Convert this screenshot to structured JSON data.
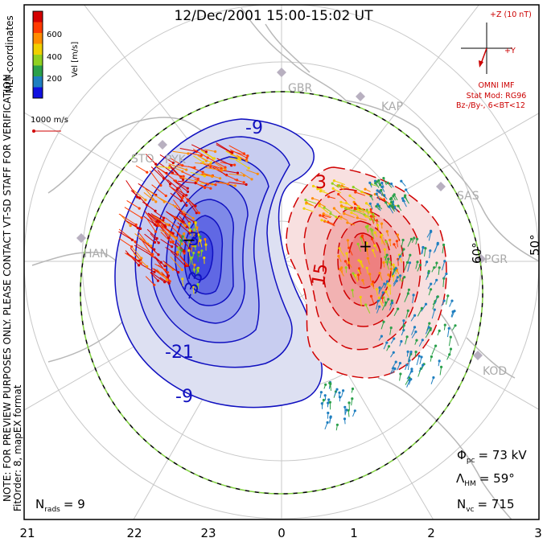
{
  "title": "12/Dec/2001  15:00-15:02  UT",
  "mlt_ticks": [
    "21",
    "22",
    "23",
    "0",
    "1",
    "2",
    "3"
  ],
  "lat_labels": [
    "60°",
    "50°"
  ],
  "radars": [
    "GBR",
    "KAP",
    "SAS",
    "PGR",
    "KOD",
    "STO",
    "PYK",
    "HAN"
  ],
  "colorbar": {
    "label": "Vel [m/s]",
    "ticks": [
      "600",
      "400",
      "200"
    ],
    "colors": [
      "#d40000",
      "#ff3a00",
      "#ff8c00",
      "#f0d000",
      "#90d020",
      "#2aa04a",
      "#1e7fc0",
      "#1010e0"
    ]
  },
  "coords_label": "MLT coordinates",
  "vector_scale": "1000 m/s",
  "imf": {
    "z_label": "+Z (10 nT)",
    "y_label": "+Y",
    "source": "OMNI IMF",
    "model": "Stat Mod: RG96",
    "condition": "Bz-/By-, 6<BT<12"
  },
  "contour_labels": [
    "-9",
    "-3",
    "-33",
    "-21",
    "-9",
    "3",
    "15"
  ],
  "stats": {
    "phi_pc": "Φ",
    "phi_sub": "pc",
    "phi_value": "= 73 kV",
    "lambda": "Λ",
    "lambda_sub": "HM",
    "lambda_value": "= 59°",
    "nvc": "N",
    "nvc_sub": "vc",
    "nvc_value": "= 715",
    "nrads": "N",
    "nrads_sub": "rads",
    "nrads_value": "= 9"
  },
  "note": "NOTE: FOR PREVIEW PURPOSES ONLY. PLEASE CONTACT VT-SD STAFF FOR VERIFICATION.",
  "fit_order": "FitOrder: 8, mapEX format",
  "markers": [
    "+",
    "−"
  ]
}
